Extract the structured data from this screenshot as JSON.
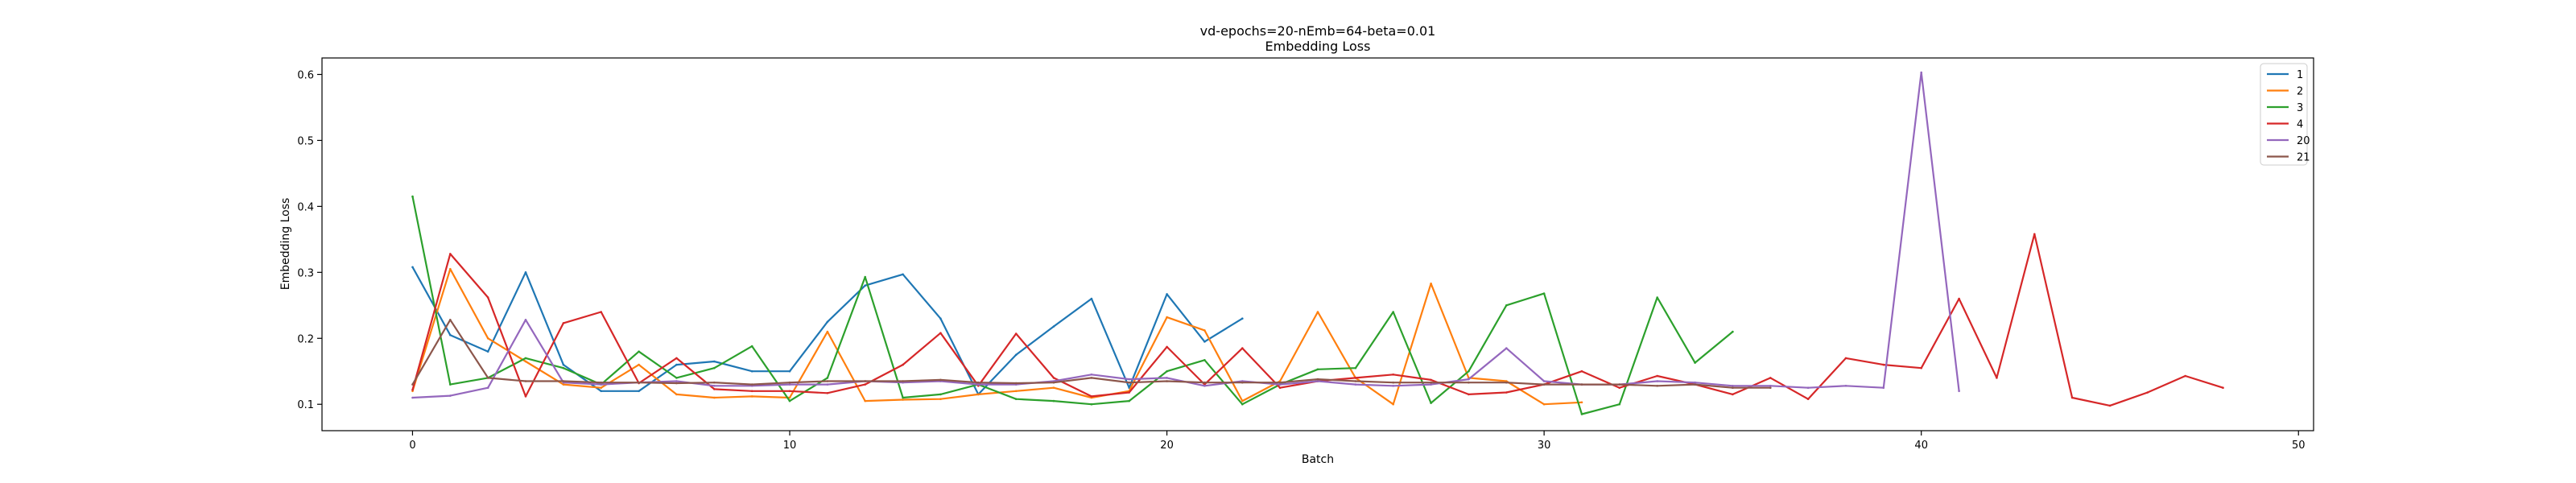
{
  "chart_data": {
    "type": "line",
    "title": "vd-epochs=20-nEmb=64-beta=0.01",
    "subtitle": "Embedding Loss",
    "xlabel": "Batch",
    "ylabel": "Embedding Loss",
    "xlim": [
      -2.4,
      50.4
    ],
    "ylim": [
      0.06,
      0.625
    ],
    "xticks": [
      0,
      10,
      20,
      30,
      40,
      50
    ],
    "yticks": [
      0.1,
      0.2,
      0.3,
      0.4,
      0.5,
      0.6
    ],
    "xtick_labels": [
      "0",
      "10",
      "20",
      "30",
      "40",
      "50"
    ],
    "ytick_labels": [
      "0.1",
      "0.2",
      "0.3",
      "0.4",
      "0.5",
      "0.6"
    ],
    "grid": false,
    "legend_position": "top-right",
    "series": [
      {
        "name": "1",
        "color": "#1f77b4",
        "values": [
          0.308,
          0.205,
          0.18,
          0.3,
          0.16,
          0.12,
          0.12,
          0.16,
          0.165,
          0.15,
          0.15,
          0.225,
          0.28,
          0.297,
          0.23,
          0.115,
          0.175,
          0.218,
          0.26,
          0.125,
          0.267,
          0.195,
          0.23
        ]
      },
      {
        "name": "2",
        "color": "#ff7f0e",
        "values": [
          0.12,
          0.305,
          0.2,
          0.165,
          0.13,
          0.125,
          0.16,
          0.115,
          0.11,
          0.112,
          0.11,
          0.21,
          0.105,
          0.107,
          0.108,
          0.115,
          0.12,
          0.125,
          0.11,
          0.12,
          0.232,
          0.212,
          0.105,
          0.135,
          0.24,
          0.14,
          0.1,
          0.283,
          0.14,
          0.135,
          0.1,
          0.103
        ]
      },
      {
        "name": "3",
        "color": "#2ca02c",
        "values": [
          0.415,
          0.13,
          0.14,
          0.17,
          0.155,
          0.13,
          0.18,
          0.14,
          0.155,
          0.188,
          0.105,
          0.14,
          0.293,
          0.11,
          0.115,
          0.13,
          0.108,
          0.105,
          0.1,
          0.105,
          0.15,
          0.167,
          0.1,
          0.13,
          0.153,
          0.155,
          0.24,
          0.102,
          0.15,
          0.25,
          0.268,
          0.085,
          0.1,
          0.262,
          0.163,
          0.21
        ]
      },
      {
        "name": "4",
        "color": "#d62728",
        "values": [
          0.122,
          0.328,
          0.262,
          0.112,
          0.223,
          0.24,
          0.132,
          0.17,
          0.123,
          0.12,
          0.12,
          0.117,
          0.13,
          0.16,
          0.208,
          0.128,
          0.207,
          0.14,
          0.112,
          0.118,
          0.187,
          0.13,
          0.185,
          0.125,
          0.135,
          0.14,
          0.145,
          0.137,
          0.115,
          0.118,
          0.13,
          0.15,
          0.125,
          0.143,
          0.13,
          0.115,
          0.14,
          0.108,
          0.17,
          0.16,
          0.155,
          0.26,
          0.14,
          0.358,
          0.11,
          0.098,
          0.118,
          0.143,
          0.125
        ]
      },
      {
        "name": "20",
        "color": "#9467bd",
        "values": [
          0.11,
          0.113,
          0.125,
          0.228,
          0.133,
          0.13,
          0.133,
          0.135,
          0.128,
          0.128,
          0.13,
          0.13,
          0.135,
          0.133,
          0.135,
          0.13,
          0.13,
          0.135,
          0.145,
          0.138,
          0.14,
          0.128,
          0.135,
          0.13,
          0.135,
          0.13,
          0.128,
          0.13,
          0.138,
          0.185,
          0.135,
          0.13,
          0.13,
          0.135,
          0.133,
          0.128,
          0.128,
          0.125,
          0.128,
          0.125,
          0.603,
          0.12
        ]
      },
      {
        "name": "21",
        "color": "#8c564b",
        "values": [
          0.13,
          0.228,
          0.14,
          0.135,
          0.135,
          0.133,
          0.133,
          0.132,
          0.133,
          0.13,
          0.133,
          0.135,
          0.135,
          0.135,
          0.137,
          0.133,
          0.132,
          0.133,
          0.14,
          0.133,
          0.135,
          0.133,
          0.133,
          0.133,
          0.138,
          0.135,
          0.133,
          0.133,
          0.133,
          0.133,
          0.13,
          0.13,
          0.13,
          0.128,
          0.13,
          0.125,
          0.125
        ]
      }
    ]
  }
}
